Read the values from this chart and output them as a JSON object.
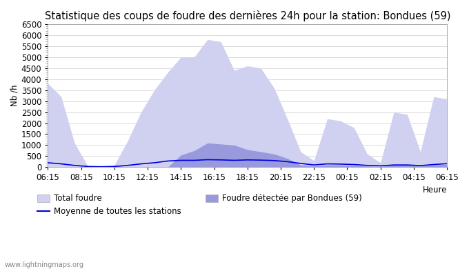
{
  "title": "Statistique des coups de foudre des dernières 24h pour la station: Bondues (59)",
  "ylabel": "Nb /h",
  "xlabel": "Heure",
  "watermark": "www.lightningmaps.org",
  "ylim": [
    0,
    6500
  ],
  "yticks": [
    0,
    500,
    1000,
    1500,
    2000,
    2500,
    3000,
    3500,
    4000,
    4500,
    5000,
    5500,
    6000,
    6500
  ],
  "x_labels": [
    "06:15",
    "08:15",
    "10:15",
    "12:15",
    "14:15",
    "16:15",
    "18:15",
    "20:15",
    "22:15",
    "00:15",
    "02:15",
    "04:15",
    "06:15"
  ],
  "legend_total": "Total foudre",
  "legend_bondues": "Foudre détectée par Bondues (59)",
  "legend_mean": "Moyenne de toutes les stations",
  "total_foudre": [
    3800,
    3200,
    1100,
    50,
    30,
    100,
    1200,
    2500,
    3500,
    4300,
    5000,
    5000,
    5800,
    5700,
    4400,
    4600,
    4500,
    3600,
    2200,
    700,
    300,
    2200,
    2100,
    1800,
    600,
    200,
    2500,
    2400,
    700,
    3200,
    3100
  ],
  "foudre_bondues": [
    0,
    0,
    0,
    0,
    0,
    0,
    0,
    0,
    0,
    0,
    550,
    750,
    1100,
    1050,
    1000,
    800,
    700,
    600,
    400,
    100,
    50,
    100,
    100,
    80,
    50,
    30,
    100,
    100,
    50,
    100,
    120
  ],
  "moyenne": [
    200,
    150,
    80,
    30,
    20,
    30,
    80,
    150,
    200,
    280,
    310,
    310,
    340,
    330,
    310,
    330,
    320,
    300,
    250,
    170,
    100,
    150,
    140,
    120,
    80,
    60,
    100,
    100,
    70,
    120,
    160
  ],
  "background_color": "#ffffff",
  "grid_color": "#cccccc",
  "fill_total_color": "#d0d0f0",
  "fill_bondues_color": "#9999dd",
  "line_mean_color": "#0000dd",
  "title_fontsize": 10.5,
  "tick_fontsize": 8.5,
  "legend_fontsize": 8.5
}
